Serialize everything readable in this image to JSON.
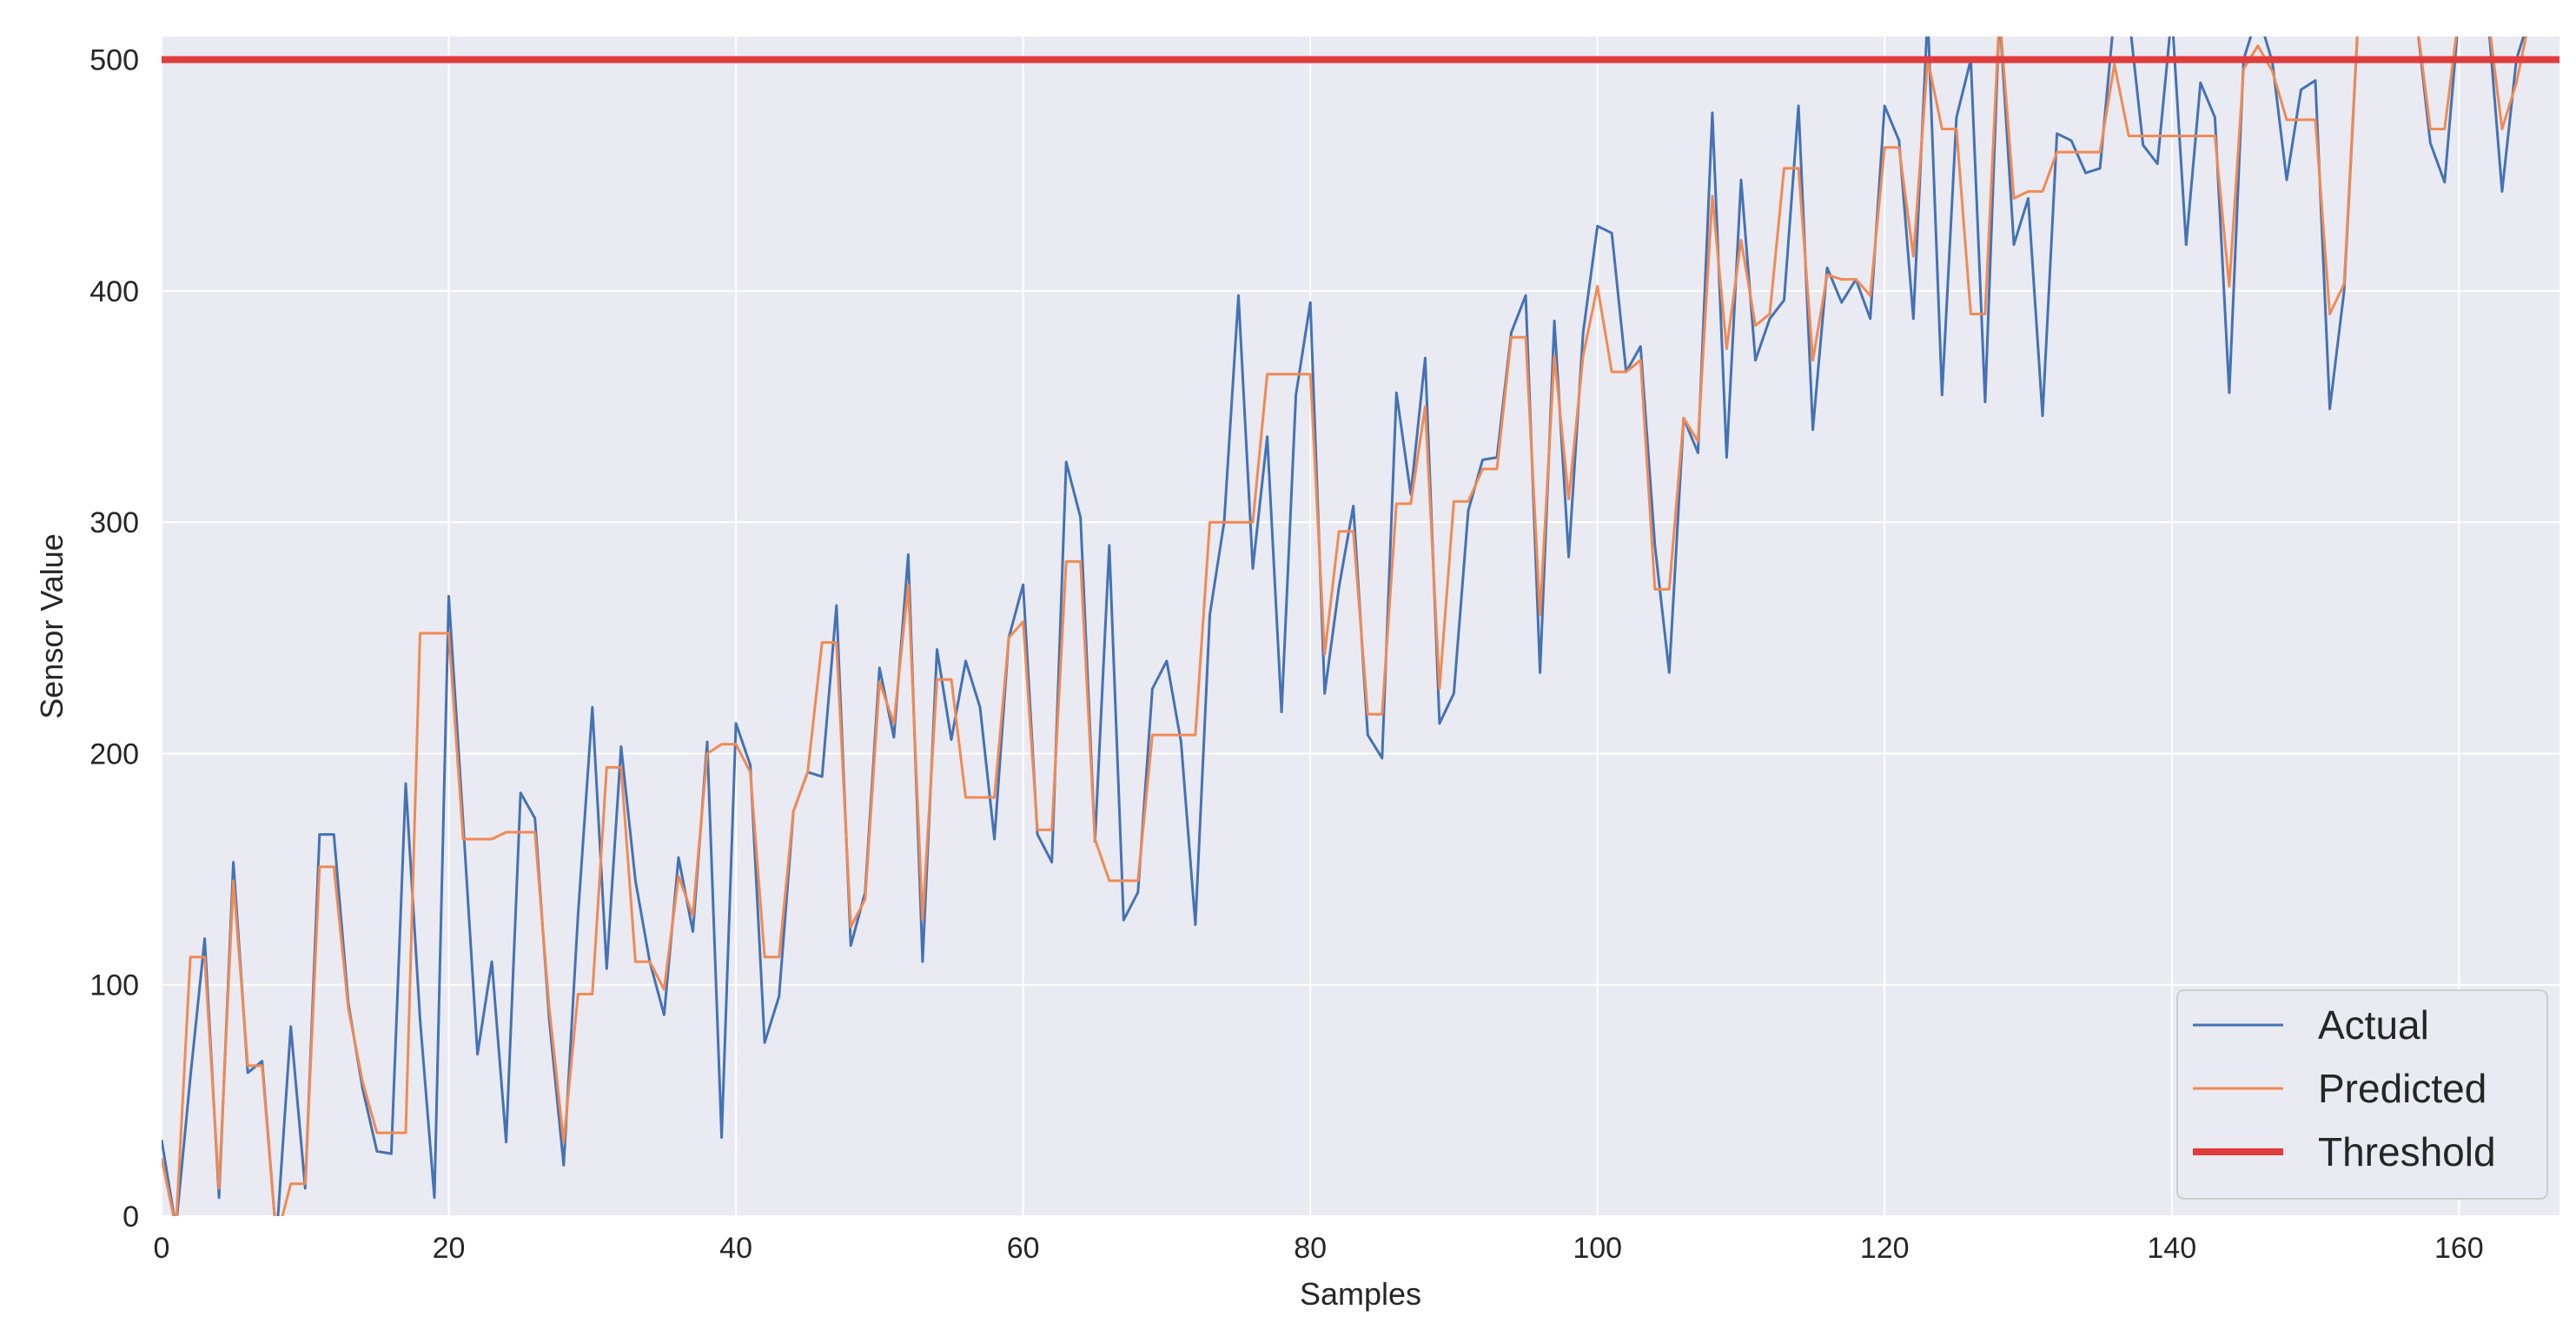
{
  "chart_data": {
    "type": "line",
    "title": "",
    "xlabel": "Samples",
    "ylabel": "Sensor Value",
    "xlim": [
      0,
      167
    ],
    "ylim": [
      0,
      510
    ],
    "xticks": [
      0,
      20,
      40,
      60,
      80,
      100,
      120,
      140,
      160
    ],
    "yticks": [
      0,
      100,
      200,
      300,
      400,
      500
    ],
    "grid": true,
    "legend_position": "bottom-right",
    "colors": {
      "actual": "#4472b4",
      "predicted": "#f08a54",
      "threshold": "#e03c3c",
      "plot_background": "#eaeaf2",
      "grid": "#ffffff"
    },
    "series": [
      {
        "name": "Actual",
        "values": [
          33,
          -5,
          60,
          120,
          8,
          153,
          62,
          67,
          -10,
          82,
          12,
          165,
          165,
          92,
          55,
          28,
          27,
          187,
          85,
          8,
          268,
          170,
          70,
          110,
          32,
          183,
          172,
          85,
          22,
          130,
          220,
          107,
          203,
          145,
          110,
          87,
          155,
          123,
          205,
          34,
          213,
          195,
          75,
          95,
          175,
          192,
          190,
          264,
          117,
          140,
          237,
          207,
          286,
          110,
          245,
          206,
          240,
          220,
          163,
          250,
          273,
          165,
          153,
          326,
          302,
          162,
          290,
          128,
          140,
          228,
          240,
          205,
          126,
          260,
          300,
          398,
          280,
          337,
          218,
          355,
          395,
          226,
          272,
          307,
          208,
          198,
          356,
          312,
          371,
          213,
          226,
          305,
          327,
          328,
          382,
          398,
          235,
          387,
          285,
          382,
          428,
          425,
          365,
          376,
          290,
          235,
          345,
          330,
          477,
          328,
          448,
          370,
          388,
          396,
          480,
          340,
          410,
          395,
          405,
          388,
          480,
          465,
          388,
          520,
          355,
          475,
          500,
          352,
          520,
          420,
          440,
          346,
          468,
          465,
          451,
          453,
          520,
          520,
          463,
          455,
          520,
          420,
          490,
          475,
          356,
          500,
          520,
          499,
          448,
          487,
          491,
          349,
          400,
          520,
          520,
          520,
          520,
          520,
          464,
          447,
          520,
          520,
          520,
          443,
          500,
          520,
          520
        ]
      },
      {
        "name": "Predicted",
        "values": [
          25,
          -5,
          112,
          112,
          12,
          145,
          65,
          65,
          -10,
          14,
          14,
          151,
          151,
          90,
          58,
          36,
          36,
          36,
          252,
          252,
          252,
          163,
          163,
          163,
          166,
          166,
          166,
          90,
          32,
          96,
          96,
          194,
          194,
          110,
          110,
          98,
          147,
          130,
          200,
          204,
          204,
          192,
          112,
          112,
          175,
          192,
          248,
          248,
          125,
          137,
          231,
          213,
          273,
          128,
          232,
          232,
          181,
          181,
          181,
          250,
          257,
          167,
          167,
          283,
          283,
          163,
          145,
          145,
          145,
          208,
          208,
          208,
          208,
          300,
          300,
          300,
          300,
          364,
          364,
          364,
          364,
          243,
          296,
          296,
          217,
          217,
          308,
          308,
          350,
          228,
          309,
          309,
          323,
          323,
          380,
          380,
          260,
          372,
          310,
          372,
          402,
          365,
          365,
          370,
          271,
          271,
          345,
          335,
          441,
          375,
          422,
          385,
          390,
          453,
          453,
          370,
          407,
          405,
          405,
          398,
          462,
          462,
          415,
          500,
          470,
          470,
          390,
          390,
          520,
          440,
          443,
          443,
          460,
          460,
          460,
          460,
          498,
          467,
          467,
          467,
          467,
          467,
          467,
          467,
          402,
          496,
          506,
          495,
          474,
          474,
          474,
          390,
          403,
          520,
          520,
          520,
          520,
          520,
          470,
          470,
          520,
          520,
          520,
          470,
          490,
          520,
          520
        ]
      },
      {
        "name": "Threshold",
        "values": [
          500,
          500
        ]
      }
    ]
  }
}
